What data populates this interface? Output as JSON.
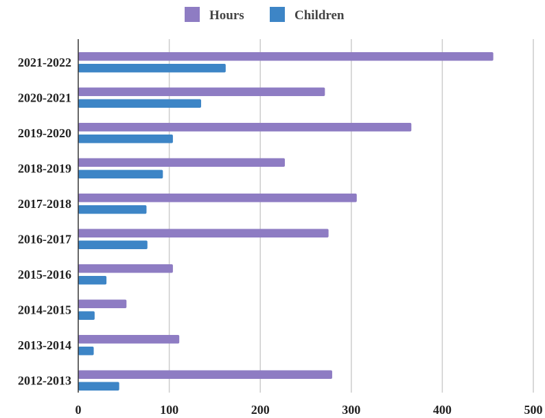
{
  "chart_data": {
    "type": "bar",
    "orientation": "horizontal",
    "categories": [
      "2021-2022",
      "2020-2021",
      "2019-2020",
      "2018-2019",
      "2017-2018",
      "2016-2017",
      "2015-2016",
      "2014-2015",
      "2013-2014",
      "2012-2013"
    ],
    "series": [
      {
        "name": "Hours",
        "color": "#8e7cc3",
        "values": [
          456,
          271,
          366,
          227,
          306,
          275,
          104,
          53,
          111,
          279
        ]
      },
      {
        "name": "Children",
        "color": "#3d85c6",
        "values": [
          162,
          135,
          104,
          93,
          75,
          76,
          31,
          18,
          17,
          45
        ]
      }
    ],
    "xlim": [
      0,
      500
    ],
    "xticks": [
      "0",
      "100",
      "200",
      "300",
      "400",
      "500"
    ],
    "grid": true,
    "legend_position": "top-center"
  }
}
